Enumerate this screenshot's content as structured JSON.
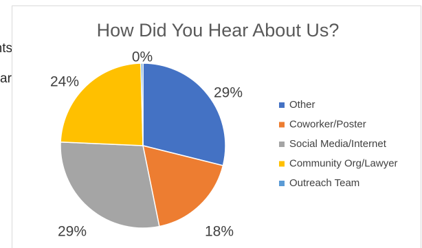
{
  "background_fragments": [
    "nts",
    "ar"
  ],
  "chart_data": {
    "type": "pie",
    "title": "How Did You Hear About Us?",
    "legend_position": "right",
    "slices": [
      {
        "name": "Other",
        "value": 29,
        "label": "29%",
        "color": "#4472c4"
      },
      {
        "name": "Coworker/Poster",
        "value": 18,
        "label": "18%",
        "color": "#ed7d31"
      },
      {
        "name": "Social Media/Internet",
        "value": 29,
        "label": "29%",
        "color": "#a5a5a5"
      },
      {
        "name": "Community Org/Lawyer",
        "value": 24,
        "label": "24%",
        "color": "#ffc000"
      },
      {
        "name": "Outreach Team",
        "value": 0.4,
        "label": "0%",
        "color": "#5b9bd5"
      }
    ]
  }
}
